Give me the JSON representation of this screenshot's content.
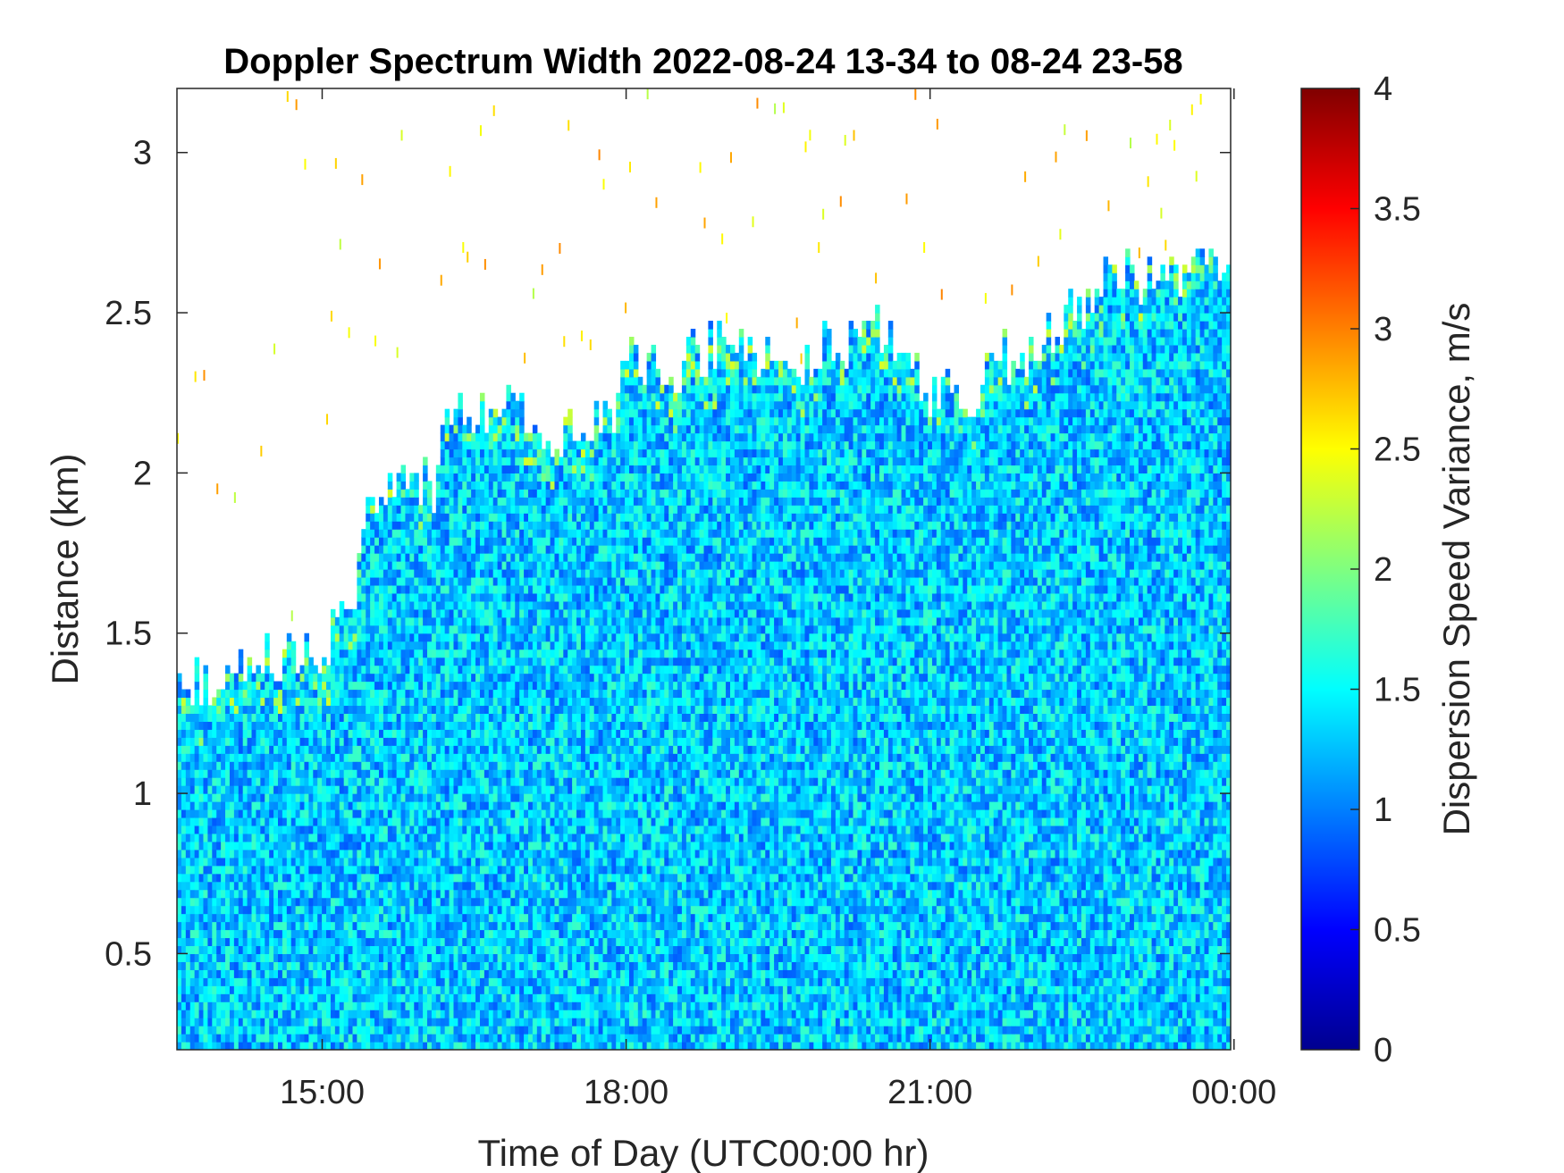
{
  "chart_data": {
    "type": "heatmap",
    "title": "Doppler Spectrum Width 2022-08-24 13-34 to 08-24 23-58",
    "xlabel": "Time of Day (UTC00:00 hr)",
    "ylabel": "Distance (km)",
    "x_range_hours": [
      13.5667,
      23.9667
    ],
    "y_range_km": [
      0.2,
      3.2
    ],
    "x_ticks": [
      {
        "value": 15,
        "label": "15:00"
      },
      {
        "value": 18,
        "label": "18:00"
      },
      {
        "value": 21,
        "label": "21:00"
      },
      {
        "value": 24,
        "label": "00:00"
      }
    ],
    "y_ticks": [
      {
        "value": 0.5,
        "label": "0.5"
      },
      {
        "value": 1,
        "label": "1"
      },
      {
        "value": 1.5,
        "label": "1.5"
      },
      {
        "value": 2,
        "label": "2"
      },
      {
        "value": 2.5,
        "label": "2.5"
      },
      {
        "value": 3,
        "label": "3"
      }
    ],
    "colorbar": {
      "label": "Dispersion Speed Variance, m/s",
      "range": [
        0,
        4
      ],
      "colormap": "jet",
      "ticks": [
        {
          "value": 0,
          "label": "0"
        },
        {
          "value": 0.5,
          "label": "0.5"
        },
        {
          "value": 1,
          "label": "1"
        },
        {
          "value": 1.5,
          "label": "1.5"
        },
        {
          "value": 2,
          "label": "2"
        },
        {
          "value": 2.5,
          "label": "2.5"
        },
        {
          "value": 3,
          "label": "3"
        },
        {
          "value": 3.5,
          "label": "3.5"
        },
        {
          "value": 4,
          "label": "4"
        }
      ]
    },
    "typical_value": 1.3,
    "signal_top_km": [
      [
        13.57,
        1.33
      ],
      [
        14.0,
        1.35
      ],
      [
        14.5,
        1.42
      ],
      [
        15.0,
        1.42
      ],
      [
        15.3,
        1.6
      ],
      [
        15.5,
        1.92
      ],
      [
        15.9,
        1.95
      ],
      [
        16.1,
        1.95
      ],
      [
        16.25,
        2.2
      ],
      [
        16.5,
        2.2
      ],
      [
        16.9,
        2.2
      ],
      [
        17.2,
        2.1
      ],
      [
        17.6,
        2.15
      ],
      [
        17.9,
        2.1
      ],
      [
        18.0,
        2.35
      ],
      [
        18.4,
        2.3
      ],
      [
        18.7,
        2.35
      ],
      [
        19.0,
        2.4
      ],
      [
        19.3,
        2.35
      ],
      [
        19.6,
        2.3
      ],
      [
        19.9,
        2.4
      ],
      [
        20.2,
        2.4
      ],
      [
        20.5,
        2.45
      ],
      [
        20.8,
        2.3
      ],
      [
        21.0,
        2.25
      ],
      [
        21.3,
        2.2
      ],
      [
        21.5,
        2.2
      ],
      [
        21.6,
        2.35
      ],
      [
        22.0,
        2.35
      ],
      [
        22.4,
        2.5
      ],
      [
        22.8,
        2.6
      ],
      [
        23.0,
        2.6
      ],
      [
        23.3,
        2.6
      ],
      [
        23.6,
        2.62
      ],
      [
        23.97,
        2.62
      ]
    ]
  }
}
